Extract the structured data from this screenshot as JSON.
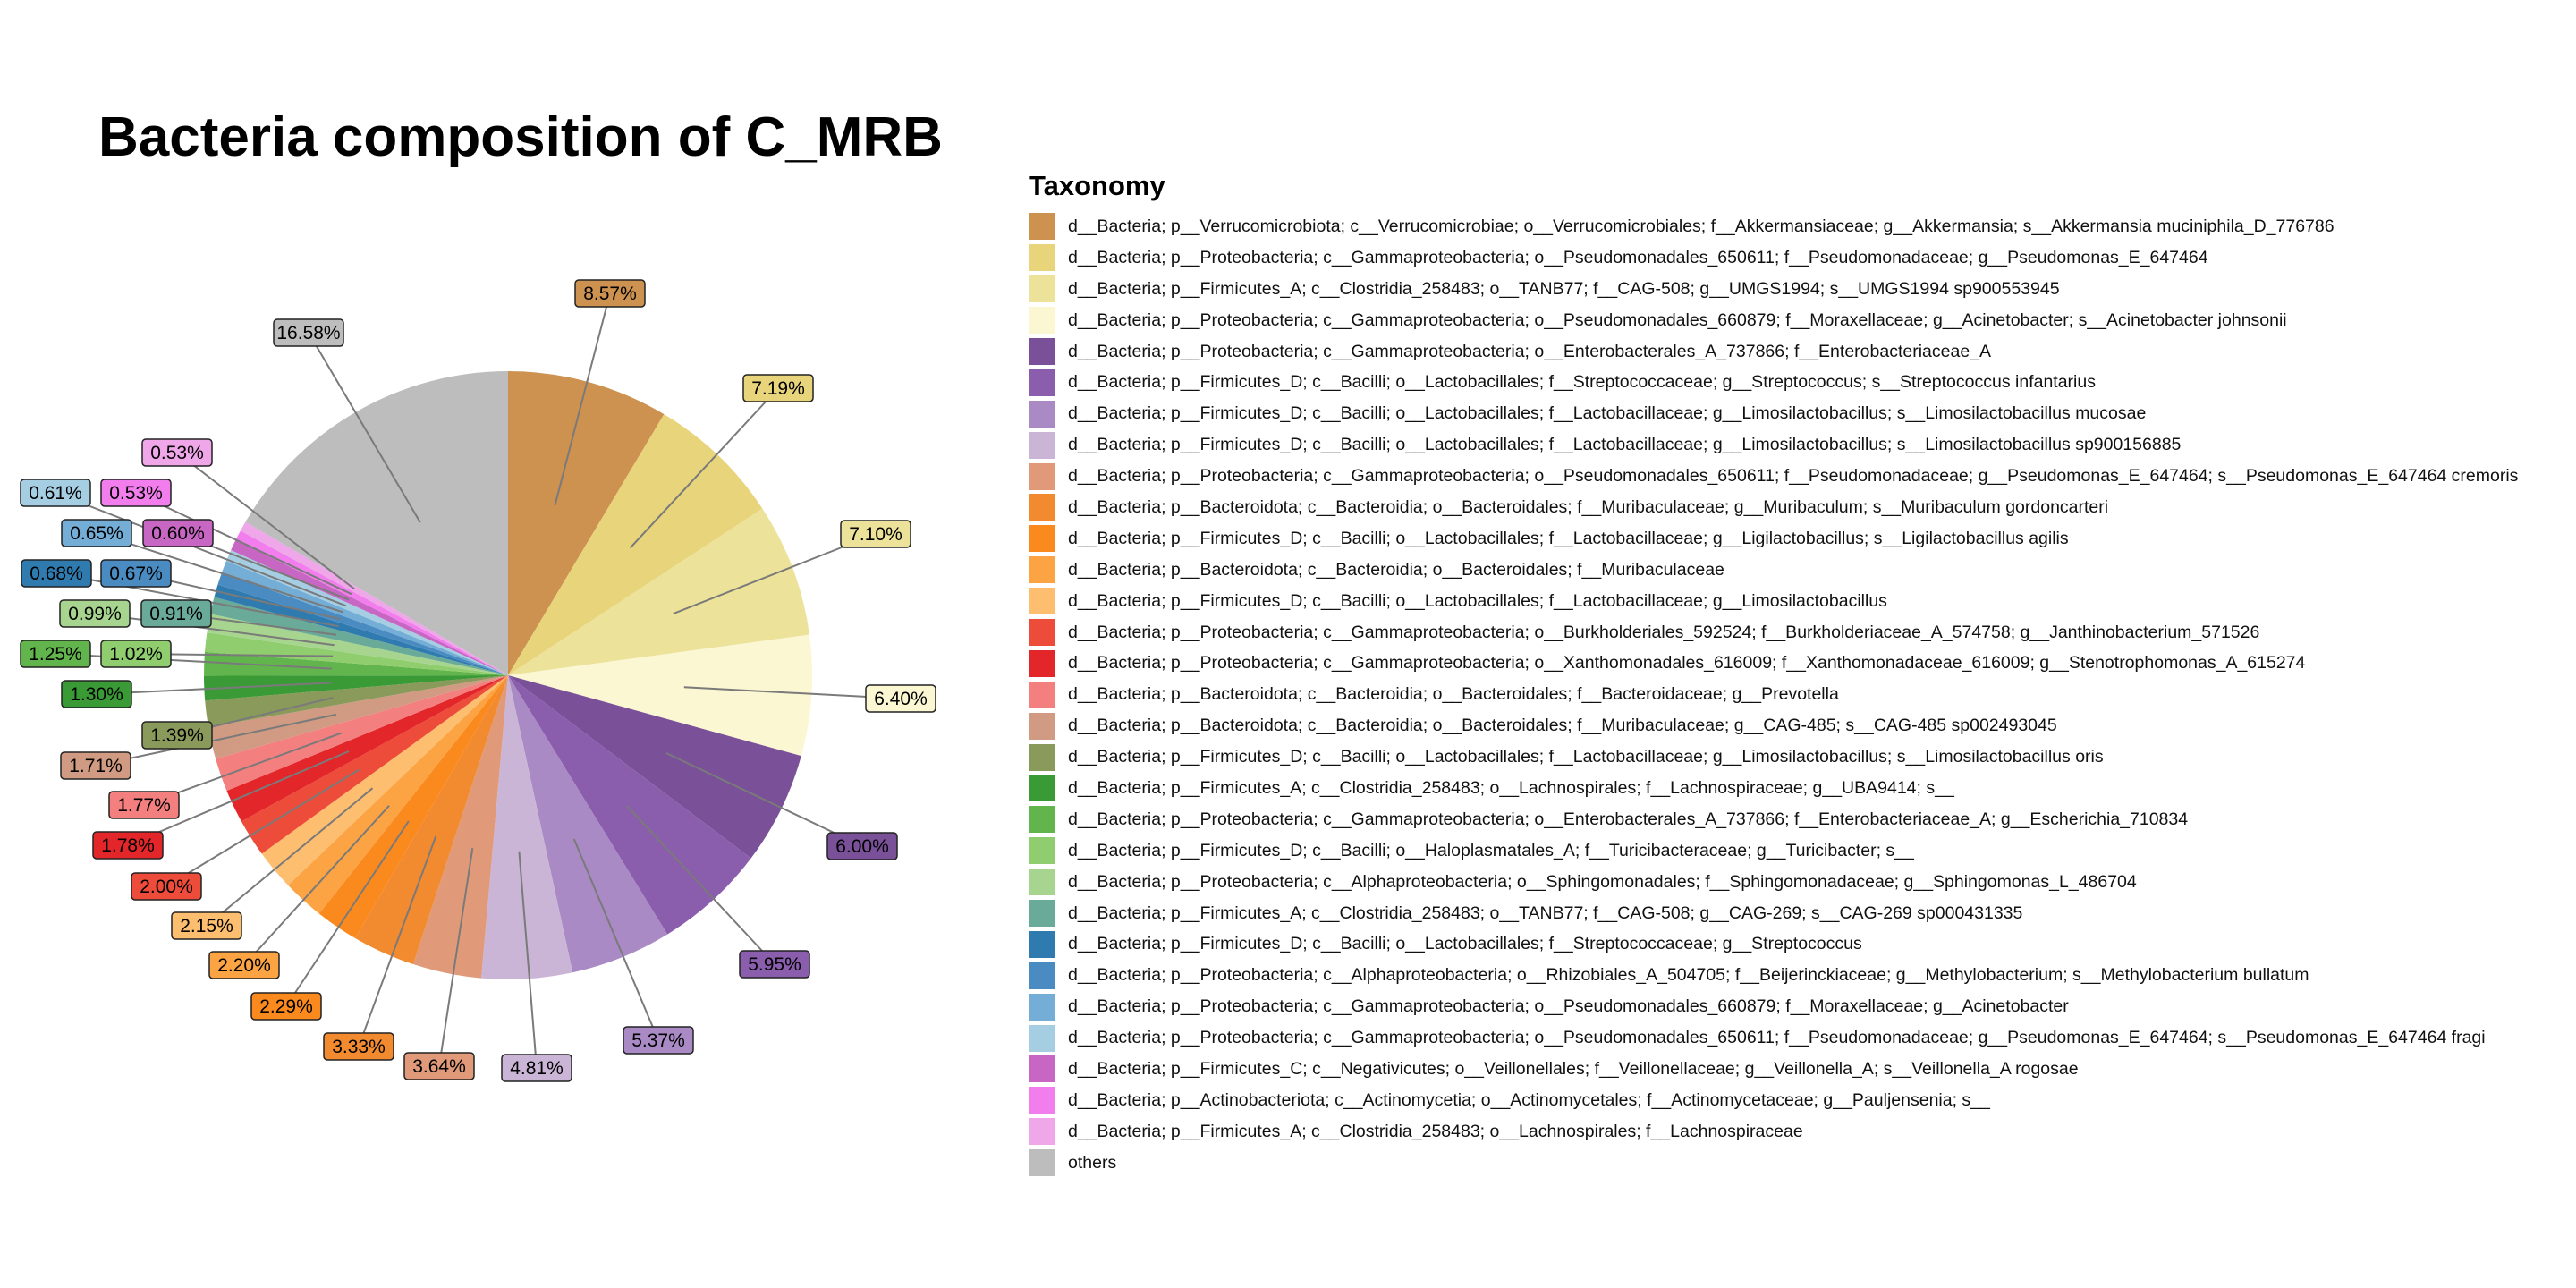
{
  "colors": {
    "leader_line": "#7a7a7a",
    "label_border": "#222222",
    "label_text": "#000000"
  },
  "chart_data": {
    "type": "pie",
    "title": "Bacteria composition of C_MRB",
    "legend_title": "Taxonomy",
    "legend_position": "right",
    "slices": [
      {
        "label": "d__Bacteria; p__Verrucomicrobiota; c__Verrucomicrobiae; o__Verrucomicrobiales; f__Akkermansiaceae; g__Akkermansia; s__Akkermansia muciniphila_D_776786",
        "value": 8.57,
        "pct_label": "8.57%",
        "color": "#CD9150"
      },
      {
        "label": "d__Bacteria; p__Proteobacteria; c__Gammaproteobacteria; o__Pseudomonadales_650611; f__Pseudomonadaceae; g__Pseudomonas_E_647464",
        "value": 7.19,
        "pct_label": "7.19%",
        "color": "#E8D47A"
      },
      {
        "label": "d__Bacteria; p__Firmicutes_A; c__Clostridia_258483; o__TANB77; f__CAG-508; g__UMGS1994; s__UMGS1994 sp900553945",
        "value": 7.1,
        "pct_label": "7.10%",
        "color": "#EDE29A"
      },
      {
        "label": "d__Bacteria; p__Proteobacteria; c__Gammaproteobacteria; o__Pseudomonadales_660879; f__Moraxellaceae; g__Acinetobacter; s__Acinetobacter johnsonii",
        "value": 6.4,
        "pct_label": "6.40%",
        "color": "#FAF7D2"
      },
      {
        "label": "d__Bacteria; p__Proteobacteria; c__Gammaproteobacteria; o__Enterobacterales_A_737866; f__Enterobacteriaceae_A",
        "value": 6.0,
        "pct_label": "6.00%",
        "color": "#7A5199"
      },
      {
        "label": "d__Bacteria; p__Firmicutes_D; c__Bacilli; o__Lactobacillales; f__Streptococcaceae; g__Streptococcus; s__Streptococcus infantarius",
        "value": 5.95,
        "pct_label": "5.95%",
        "color": "#8A5EAD"
      },
      {
        "label": "d__Bacteria; p__Firmicutes_D; c__Bacilli; o__Lactobacillales; f__Lactobacillaceae; g__Limosilactobacillus; s__Limosilactobacillus mucosae",
        "value": 5.37,
        "pct_label": "5.37%",
        "color": "#A98AC4"
      },
      {
        "label": "d__Bacteria; p__Firmicutes_D; c__Bacilli; o__Lactobacillales; f__Lactobacillaceae; g__Limosilactobacillus; s__Limosilactobacillus sp900156885",
        "value": 4.81,
        "pct_label": "4.81%",
        "color": "#CBB5D6"
      },
      {
        "label": "d__Bacteria; p__Proteobacteria; c__Gammaproteobacteria; o__Pseudomonadales_650611; f__Pseudomonadaceae; g__Pseudomonas_E_647464; s__Pseudomonas_E_647464 cremoris",
        "value": 3.64,
        "pct_label": "3.64%",
        "color": "#E09A7A"
      },
      {
        "label": "d__Bacteria; p__Bacteroidota; c__Bacteroidia; o__Bacteroidales; f__Muribaculaceae; g__Muribaculum; s__Muribaculum gordoncarteri",
        "value": 3.33,
        "pct_label": "3.33%",
        "color": "#F28A30"
      },
      {
        "label": "d__Bacteria; p__Firmicutes_D; c__Bacilli; o__Lactobacillales; f__Lactobacillaceae; g__Ligilactobacillus; s__Ligilactobacillus agilis",
        "value": 2.29,
        "pct_label": "2.29%",
        "color": "#FB8A1E"
      },
      {
        "label": "d__Bacteria; p__Bacteroidota; c__Bacteroidia; o__Bacteroidales; f__Muribaculaceae",
        "value": 2.2,
        "pct_label": "2.20%",
        "color": "#FCA443"
      },
      {
        "label": "d__Bacteria; p__Firmicutes_D; c__Bacilli; o__Lactobacillales; f__Lactobacillaceae; g__Limosilactobacillus",
        "value": 2.15,
        "pct_label": "2.15%",
        "color": "#FDBE6F"
      },
      {
        "label": "d__Bacteria; p__Proteobacteria; c__Gammaproteobacteria; o__Burkholderiales_592524; f__Burkholderiaceae_A_574758; g__Janthinobacterium_571526",
        "value": 2.0,
        "pct_label": "2.00%",
        "color": "#EE4C3A"
      },
      {
        "label": "d__Bacteria; p__Proteobacteria; c__Gammaproteobacteria; o__Xanthomonadales_616009; f__Xanthomonadaceae_616009; g__Stenotrophomonas_A_615274",
        "value": 1.78,
        "pct_label": "1.78%",
        "color": "#E3262A"
      },
      {
        "label": "d__Bacteria; p__Bacteroidota; c__Bacteroidia; o__Bacteroidales; f__Bacteroidaceae; g__Prevotella",
        "value": 1.77,
        "pct_label": "1.77%",
        "color": "#F47F7F"
      },
      {
        "label": "d__Bacteria; p__Bacteroidota; c__Bacteroidia; o__Bacteroidales; f__Muribaculaceae; g__CAG-485; s__CAG-485 sp002493045",
        "value": 1.71,
        "pct_label": "1.71%",
        "color": "#D09B82"
      },
      {
        "label": "d__Bacteria; p__Firmicutes_D; c__Bacilli; o__Lactobacillales; f__Lactobacillaceae; g__Limosilactobacillus; s__Limosilactobacillus oris",
        "value": 1.39,
        "pct_label": "1.39%",
        "color": "#8A9A5B"
      },
      {
        "label": "d__Bacteria; p__Firmicutes_A; c__Clostridia_258483; o__Lachnospirales; f__Lachnospiraceae; g__UBA9414; s__",
        "value": 1.3,
        "pct_label": "1.30%",
        "color": "#3A9A35"
      },
      {
        "label": "d__Bacteria; p__Proteobacteria; c__Gammaproteobacteria; o__Enterobacterales_A_737866; f__Enterobacteriaceae_A; g__Escherichia_710834",
        "value": 1.25,
        "pct_label": "1.25%",
        "color": "#62B54C"
      },
      {
        "label": "d__Bacteria; p__Firmicutes_D; c__Bacilli; o__Haloplasmatales_A; f__Turicibacteraceae; g__Turicibacter; s__",
        "value": 1.02,
        "pct_label": "1.02%",
        "color": "#8FCD6E"
      },
      {
        "label": "d__Bacteria; p__Proteobacteria; c__Alphaproteobacteria; o__Sphingomonadales; f__Sphingomonadaceae; g__Sphingomonas_L_486704",
        "value": 0.99,
        "pct_label": "0.99%",
        "color": "#A7D58F"
      },
      {
        "label": "d__Bacteria; p__Firmicutes_A; c__Clostridia_258483; o__TANB77; f__CAG-508; g__CAG-269; s__CAG-269 sp000431335",
        "value": 0.91,
        "pct_label": "0.91%",
        "color": "#6AAA98"
      },
      {
        "label": "d__Bacteria; p__Firmicutes_D; c__Bacilli; o__Lactobacillales; f__Streptococcaceae; g__Streptococcus",
        "value": 0.68,
        "pct_label": "0.68%",
        "color": "#2F7BB0"
      },
      {
        "label": "d__Bacteria; p__Proteobacteria; c__Alphaproteobacteria; o__Rhizobiales_A_504705; f__Beijerinckiaceae; g__Methylobacterium; s__Methylobacterium bullatum",
        "value": 0.67,
        "pct_label": "0.67%",
        "color": "#4A8CC2"
      },
      {
        "label": "d__Bacteria; p__Proteobacteria; c__Gammaproteobacteria; o__Pseudomonadales_660879; f__Moraxellaceae; g__Acinetobacter",
        "value": 0.65,
        "pct_label": "0.65%",
        "color": "#74ADD6"
      },
      {
        "label": "d__Bacteria; p__Proteobacteria; c__Gammaproteobacteria; o__Pseudomonadales_650611; f__Pseudomonadaceae; g__Pseudomonas_E_647464; s__Pseudomonas_E_647464 fragi",
        "value": 0.61,
        "pct_label": "0.61%",
        "color": "#A6CEE3"
      },
      {
        "label": "d__Bacteria; p__Firmicutes_C; c__Negativicutes; o__Veillonellales; f__Veillonellaceae; g__Veillonella_A; s__Veillonella_A rogosae",
        "value": 0.6,
        "pct_label": "0.60%",
        "color": "#C866C4"
      },
      {
        "label": "d__Bacteria; p__Actinobacteriota; c__Actinomycetia; o__Actinomycetales; f__Actinomycetaceae; g__Pauljensenia; s__",
        "value": 0.53,
        "pct_label": "0.53%",
        "color": "#F27EEE"
      },
      {
        "label": "d__Bacteria; p__Firmicutes_A; c__Clostridia_258483; o__Lachnospirales; f__Lachnospiraceae",
        "value": 0.53,
        "pct_label": "0.53%",
        "color": "#EFA7EA"
      },
      {
        "label": "others",
        "value": 16.58,
        "pct_label": "16.58%",
        "color": "#BDBDBD"
      }
    ]
  }
}
